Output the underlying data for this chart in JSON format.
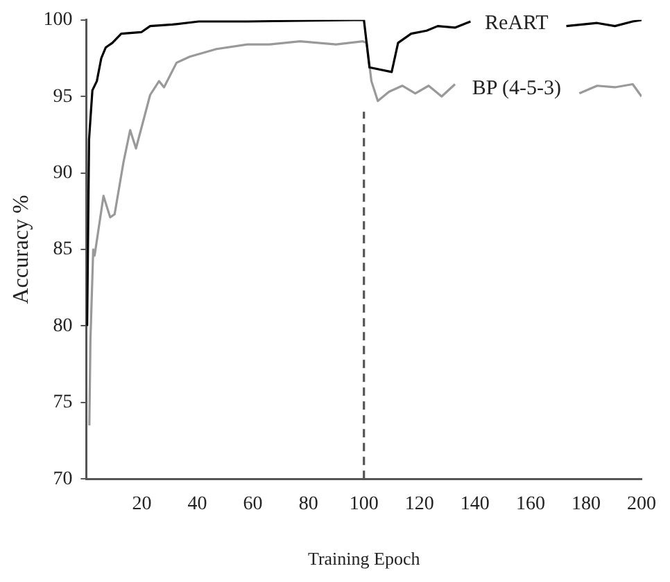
{
  "chart_data": {
    "type": "line",
    "xlabel": "Training Epoch",
    "ylabel": "Accuracy %",
    "xlim": [
      0,
      200
    ],
    "ylim": [
      70,
      100
    ],
    "xticks": [
      20,
      40,
      60,
      80,
      100,
      120,
      140,
      160,
      180,
      200
    ],
    "yticks": [
      70,
      75,
      80,
      85,
      90,
      95,
      100
    ],
    "grid": false,
    "legend": false,
    "marker": "none",
    "line_style": "solid",
    "ref_lines": [
      {
        "axis": "x",
        "value": 100,
        "line_style": "dashed",
        "color": "#555555"
      }
    ],
    "series": [
      {
        "name": "ReART",
        "color": "#000000",
        "x": [
          0.3,
          1,
          2.2,
          3.8,
          5.4,
          7,
          9.4,
          12.6,
          19.8,
          23,
          31,
          40.5,
          58,
          100,
          102,
          110,
          112.3,
          117,
          122.6,
          126.6,
          132.9,
          138.4,
          155,
          172.9,
          184,
          190.4,
          196.8,
          200
        ],
        "values": [
          80,
          92.2,
          95.4,
          96,
          97.5,
          98.2,
          98.5,
          99.1,
          99.2,
          99.6,
          99.7,
          99.9,
          99.9,
          100,
          96.9,
          96.6,
          98.5,
          99.1,
          99.3,
          99.6,
          99.5,
          99.9,
          null,
          99.6,
          99.8,
          99.6,
          99.9,
          100
        ]
      },
      {
        "name": "BP (4-5-3)",
        "color": "#999999",
        "x": [
          1.1,
          1.5,
          2.5,
          3,
          6.2,
          8.6,
          10.2,
          13.4,
          15.8,
          17.9,
          23,
          26.2,
          28,
          32.5,
          37.3,
          46.9,
          58,
          66,
          77,
          90,
          99.6,
          101,
          102.7,
          105,
          109,
          113.8,
          118.5,
          123.3,
          128,
          132.8,
          155,
          177.6,
          184,
          190.4,
          196.8,
          200
        ],
        "values": [
          73.5,
          79.1,
          85,
          84.6,
          88.5,
          87.1,
          87.3,
          90.7,
          92.8,
          91.6,
          95.1,
          96,
          95.6,
          97.2,
          97.6,
          98.1,
          98.4,
          98.4,
          98.6,
          98.4,
          98.6,
          98.5,
          96,
          94.7,
          95.3,
          95.7,
          95.2,
          95.7,
          95,
          95.8,
          null,
          95.2,
          95.7,
          95.6,
          95.8,
          95
        ]
      }
    ]
  }
}
